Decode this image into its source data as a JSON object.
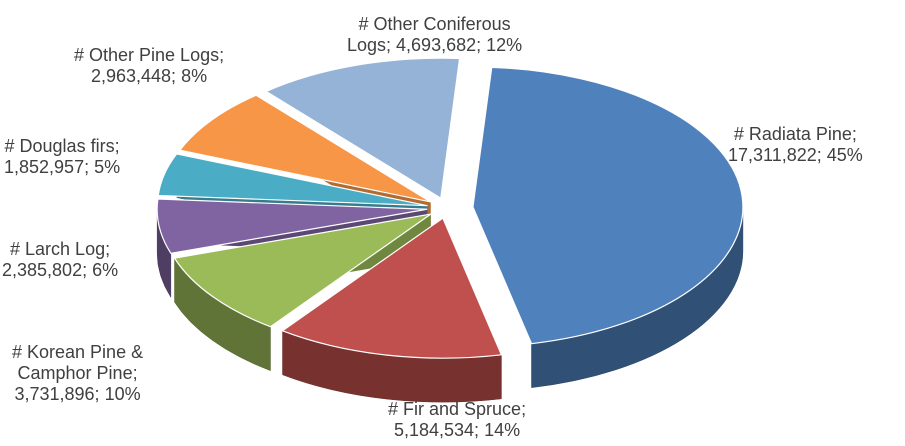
{
  "chart_data": {
    "type": "pie",
    "style": "3d-exploded",
    "legend": "none",
    "categories": [
      "Radiata Pine",
      "Fir and Spruce",
      "Korean Pine & Camphor Pine",
      "Larch Log",
      "Douglas firs",
      "Other Pine Logs",
      "Other Coniferous Logs"
    ],
    "values": [
      17311822,
      5184534,
      3731896,
      2385802,
      1852957,
      2963448,
      4693682
    ],
    "percentages": [
      45,
      14,
      10,
      6,
      5,
      8,
      12
    ],
    "colors": [
      "#4F81BD",
      "#C0504D",
      "#9BBB59",
      "#8064A2",
      "#4BACC6",
      "#F79646",
      "#95B3D7"
    ]
  },
  "labels": [
    {
      "line1": "# Radiata Pine;",
      "line2": "17,311,822; 45%"
    },
    {
      "line1": "# Fir and Spruce;",
      "line2": "5,184,534; 14%"
    },
    {
      "line1": "# Korean Pine &",
      "line2": "Camphor Pine;",
      "line3": "3,731,896; 10%"
    },
    {
      "line1": "# Larch Log;",
      "line2": "2,385,802; 6%"
    },
    {
      "line1": "# Douglas firs;",
      "line2": "1,852,957; 5%"
    },
    {
      "line1": "# Other Pine Logs;",
      "line2": "2,963,448; 8%"
    },
    {
      "line1": "# Other Coniferous",
      "line2": "Logs; 4,693,682; 12%"
    }
  ]
}
